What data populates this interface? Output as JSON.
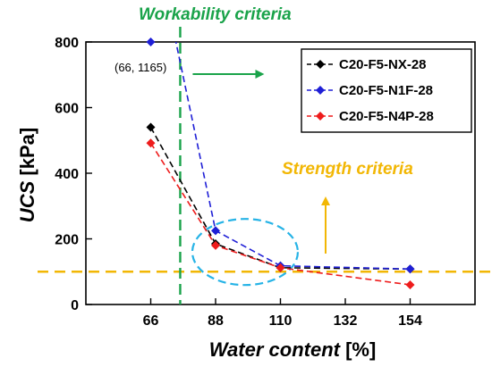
{
  "chart_data": {
    "type": "line",
    "xlabel_italic": "Water content",
    "xlabel_unit": " [%]",
    "ylabel_italic": "UCS",
    "ylabel_unit": " [kPa]",
    "xlim": [
      44,
      176
    ],
    "ylim": [
      0,
      800
    ],
    "x_ticks": [
      66,
      88,
      110,
      132,
      154
    ],
    "y_ticks": [
      0,
      200,
      400,
      600,
      800
    ],
    "grid": false,
    "legend_placement": "top-right",
    "series": [
      {
        "name": "C20-F5-NX-28",
        "color": "#000000",
        "marker": "diamond",
        "line_style": "dashed",
        "x": [
          66,
          88,
          110,
          154
        ],
        "y": [
          540,
          185,
          112,
          108
        ]
      },
      {
        "name": "C20-F5-N1F-28",
        "color": "#1f1fd6",
        "marker": "diamond",
        "line_style": "dashed",
        "x": [
          66,
          88,
          110,
          154
        ],
        "y": [
          1165,
          225,
          118,
          108
        ]
      },
      {
        "name": "C20-F5-N4P-28",
        "color": "#ee1c1c",
        "marker": "diamond",
        "line_style": "dashed",
        "x": [
          66,
          88,
          110,
          154
        ],
        "y": [
          492,
          180,
          112,
          60
        ]
      }
    ],
    "offscale_marker": {
      "x": 66,
      "y": 800,
      "label": "(66, 1165)",
      "color": "#1f1fd6"
    },
    "strength_criteria": {
      "label": "Strength criteria",
      "y": 100,
      "color": "#f2b705"
    },
    "workability_criteria": {
      "label": "Workability criteria",
      "x": 76,
      "color": "#1aa34a"
    },
    "highlight_ellipse": {
      "color": "#26b3e6",
      "center_x": 98,
      "center_y": 160
    }
  }
}
